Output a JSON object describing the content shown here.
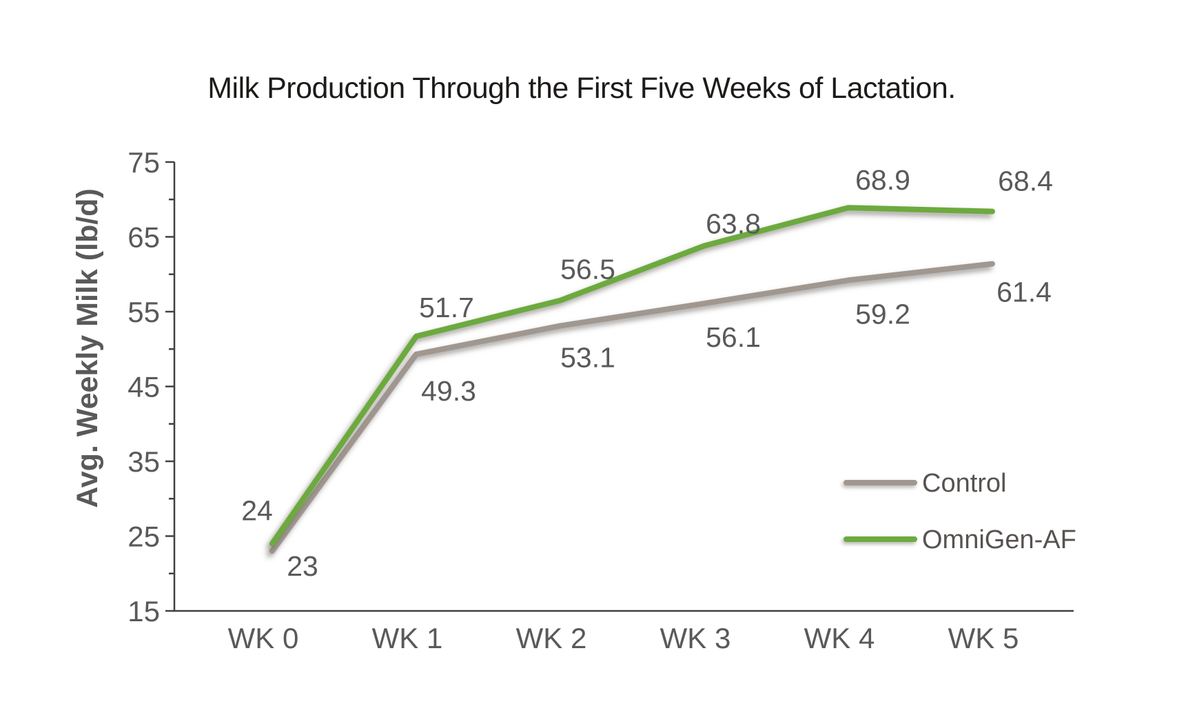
{
  "colors": {
    "omnigen_green": "#6caa3e",
    "control_gray": "#a09890",
    "axis": "#404040",
    "tick_text": "#595959",
    "title_text": "#1d1b19",
    "legend_text": "#575250"
  },
  "chart_data": {
    "type": "line",
    "title": "Milk Production Through the First Five Weeks of Lactation.",
    "xlabel": "",
    "ylabel": "Avg. Weekly Milk (lb/d)",
    "categories": [
      "WK 0",
      "WK 1",
      "WK 2",
      "WK 3",
      "WK 4",
      "WK 5"
    ],
    "ylim": [
      15,
      75
    ],
    "ytick_major": [
      15,
      25,
      35,
      45,
      55,
      65,
      75
    ],
    "ytick_minor": [
      20,
      30,
      40,
      50,
      60,
      70
    ],
    "grid": false,
    "legend_position": "right-center",
    "series": [
      {
        "name": "Control",
        "color": "#a09890",
        "values": [
          23,
          49.3,
          53.1,
          56.1,
          59.2,
          61.4
        ],
        "labels": [
          "23",
          "49.3",
          "53.1",
          "56.1",
          "59.2",
          "61.4"
        ],
        "label_offsets": [
          [
            44,
            22
          ],
          [
            47,
            53
          ],
          [
            40,
            46
          ],
          [
            42,
            49
          ],
          [
            50,
            49
          ],
          [
            46,
            41
          ]
        ]
      },
      {
        "name": "OmniGen-AF",
        "color": "#6caa3e",
        "values": [
          24,
          51.7,
          56.5,
          63.8,
          68.9,
          68.4
        ],
        "labels": [
          "24",
          "51.7",
          "56.5",
          "63.8",
          "68.9",
          "68.4"
        ],
        "label_offsets": [
          [
            -22,
            -48
          ],
          [
            44,
            -42
          ],
          [
            40,
            -45
          ],
          [
            42,
            -32
          ],
          [
            50,
            -40
          ],
          [
            48,
            -44
          ]
        ]
      }
    ]
  }
}
